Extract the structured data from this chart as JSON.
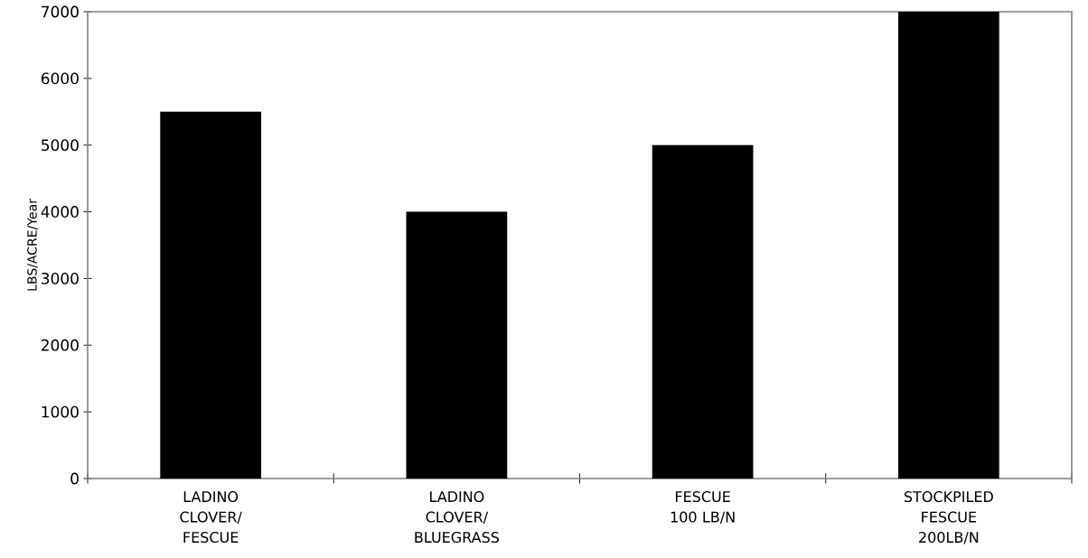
{
  "chart_data": {
    "type": "bar",
    "ylabel": "LBS/ACRE/Year",
    "categories": [
      "LADINO CLOVER/ FESCUE",
      "LADINO CLOVER/ BLUEGRASS",
      "FESCUE 100 LB/N",
      "STOCKPILED FESCUE 200LB/N"
    ],
    "values": [
      5500,
      4000,
      5000,
      7000
    ],
    "color": "#000000",
    "ylim": [
      0,
      7000
    ],
    "yticks": [
      0,
      1000,
      2000,
      3000,
      4000,
      5000,
      6000,
      7000
    ]
  }
}
